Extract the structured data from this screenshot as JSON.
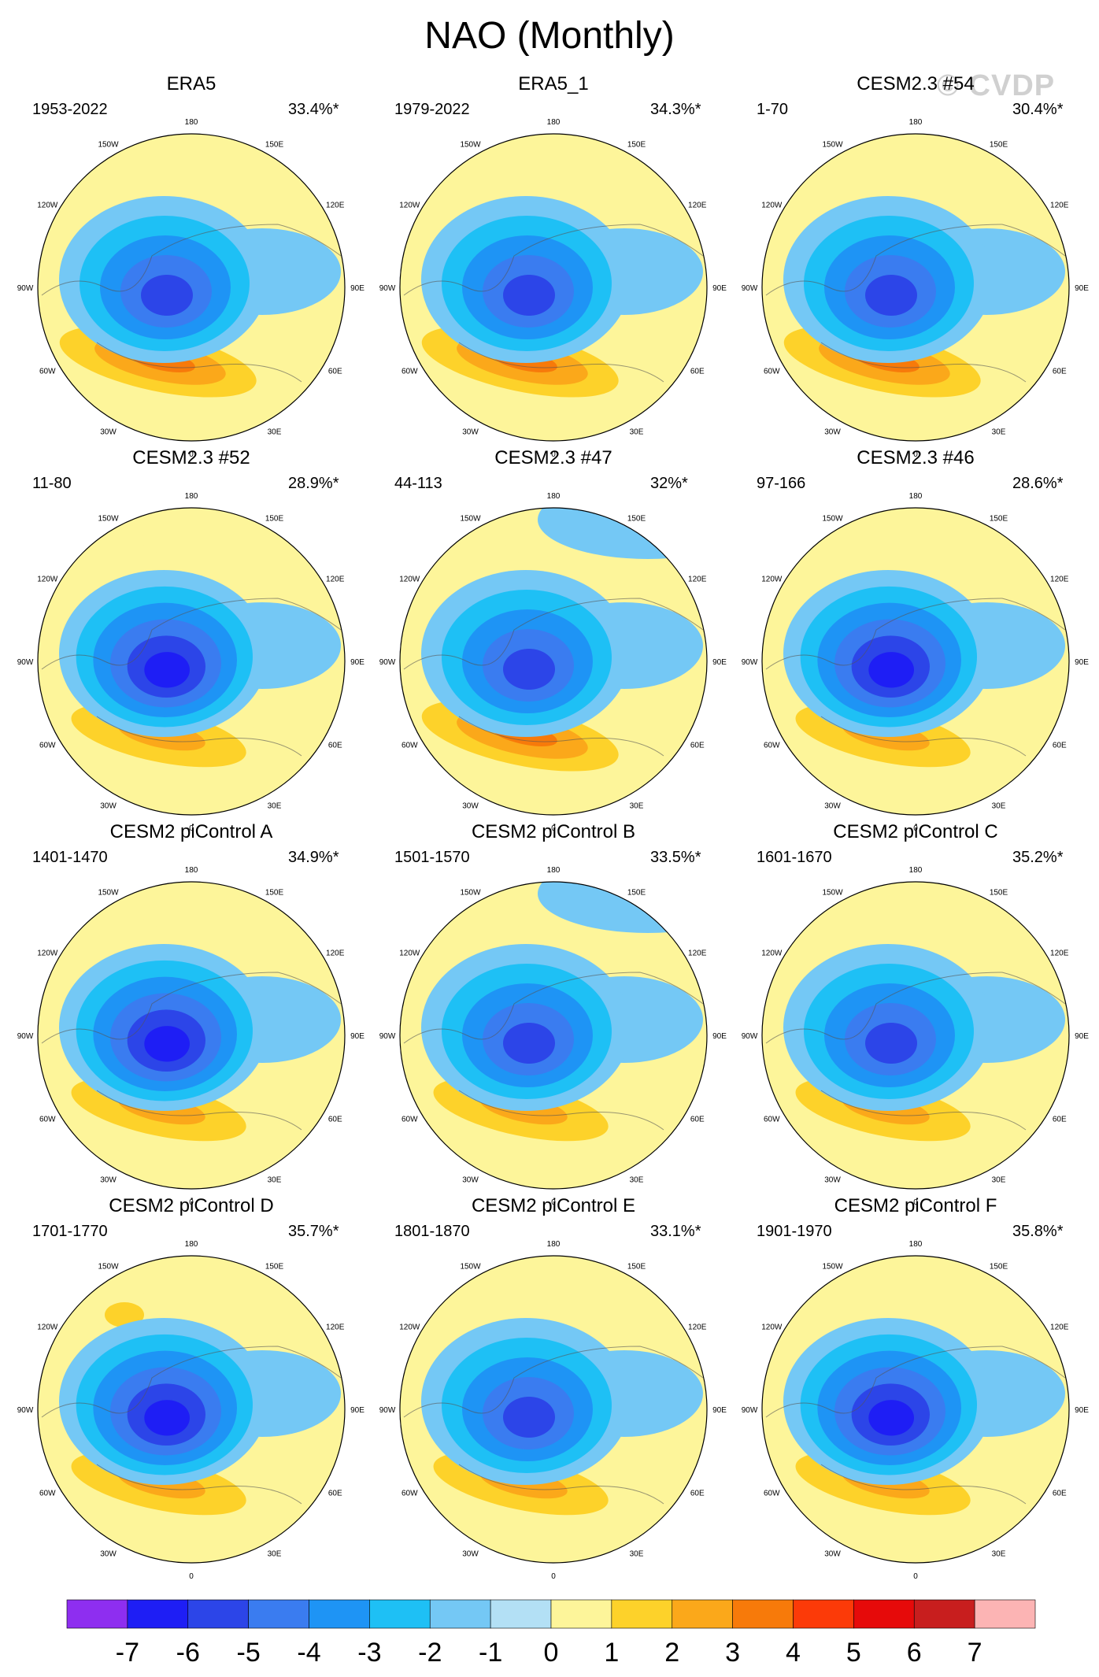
{
  "title": "NAO (Monthly)",
  "watermark": "© CVDP",
  "chart_data": {
    "type": "polar-contour-map",
    "variable": "NAO pattern (sea level pressure regression)",
    "longitude_labels": [
      "180",
      "150E",
      "120E",
      "90E",
      "60E",
      "30E",
      "0",
      "30W",
      "60W",
      "90W",
      "120W",
      "150W"
    ],
    "panels": [
      {
        "title": "ERA5",
        "years": "1953-2022",
        "variance": "33.4%*",
        "neg_center": -5,
        "pos_center": 4,
        "pac_pos": 0,
        "pac_neg": 0
      },
      {
        "title": "ERA5_1",
        "years": "1979-2022",
        "variance": "34.3%*",
        "neg_center": -5,
        "pos_center": 4,
        "pac_pos": 0,
        "pac_neg": 0
      },
      {
        "title": "CESM2.3 #54",
        "years": "1-70",
        "variance": "30.4%*",
        "neg_center": -5,
        "pos_center": 4,
        "pac_pos": 0,
        "pac_neg": 0
      },
      {
        "title": "CESM2.3 #52",
        "years": "11-80",
        "variance": "28.9%*",
        "neg_center": -6,
        "pos_center": 3,
        "pac_pos": 1,
        "pac_neg": 0
      },
      {
        "title": "CESM2.3 #47",
        "years": "44-113",
        "variance": "32%*",
        "neg_center": -5,
        "pos_center": 4,
        "pac_pos": 1,
        "pac_neg": -1
      },
      {
        "title": "CESM2.3 #46",
        "years": "97-166",
        "variance": "28.6%*",
        "neg_center": -6,
        "pos_center": 3,
        "pac_pos": 1,
        "pac_neg": 0
      },
      {
        "title": "CESM2 piControl A",
        "years": "1401-1470",
        "variance": "34.9%*",
        "neg_center": -6,
        "pos_center": 3,
        "pac_pos": 1,
        "pac_neg": 0
      },
      {
        "title": "CESM2 piControl B",
        "years": "1501-1570",
        "variance": "33.5%*",
        "neg_center": -5,
        "pos_center": 3,
        "pac_pos": 1,
        "pac_neg": -1
      },
      {
        "title": "CESM2 piControl C",
        "years": "1601-1670",
        "variance": "35.2%*",
        "neg_center": -5,
        "pos_center": 3,
        "pac_pos": 1,
        "pac_neg": 0
      },
      {
        "title": "CESM2 piControl D",
        "years": "1701-1770",
        "variance": "35.7%*",
        "neg_center": -6,
        "pos_center": 3,
        "pac_pos": 2,
        "pac_neg": 0
      },
      {
        "title": "CESM2 piControl E",
        "years": "1801-1870",
        "variance": "33.1%*",
        "neg_center": -5,
        "pos_center": 3,
        "pac_pos": 1,
        "pac_neg": 0
      },
      {
        "title": "CESM2 piControl F",
        "years": "1901-1970",
        "variance": "35.8%*",
        "neg_center": -6,
        "pos_center": 3,
        "pac_pos": 1,
        "pac_neg": 0
      }
    ],
    "colorbar": {
      "labels": [
        "-7",
        "-6",
        "-5",
        "-4",
        "-3",
        "-2",
        "-1",
        "0",
        "1",
        "2",
        "3",
        "4",
        "5",
        "6",
        "7"
      ],
      "colors": [
        "#8e2ef0",
        "#1e1ef5",
        "#2c45e8",
        "#3a7cf0",
        "#1e94f5",
        "#1ec0f5",
        "#74c8f5",
        "#b3e0f5",
        "#fdf59a",
        "#fdd22a",
        "#fba81a",
        "#f77a0a",
        "#fc3a08",
        "#e60a0a",
        "#c81e1e",
        "#fcb4b4"
      ]
    }
  }
}
